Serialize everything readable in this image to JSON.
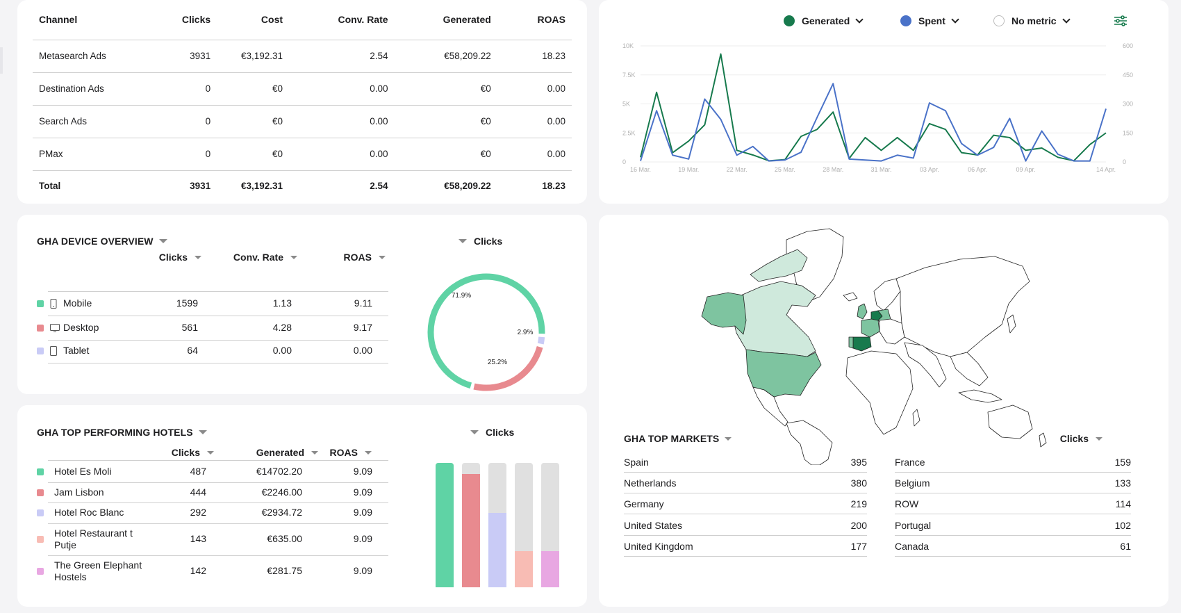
{
  "channel_table": {
    "headers": [
      "Channel",
      "Clicks",
      "Cost",
      "Conv. Rate",
      "Generated",
      "ROAS"
    ],
    "rows": [
      [
        "Metasearch Ads",
        "3931",
        "€3,192.31",
        "2.54",
        "€58,209.22",
        "18.23"
      ],
      [
        "Destination Ads",
        "0",
        "€0",
        "0.00",
        "€0",
        "0.00"
      ],
      [
        "Search Ads",
        "0",
        "€0",
        "0.00",
        "€0",
        "0.00"
      ],
      [
        "PMax",
        "0",
        "€0",
        "0.00",
        "€0",
        "0.00"
      ]
    ],
    "total": [
      "Total",
      "3931",
      "€3,192.31",
      "2.54",
      "€58,209.22",
      "18.23"
    ]
  },
  "line_chart": {
    "legend": {
      "generated": "Generated",
      "spent": "Spent",
      "no_metric": "No metric"
    },
    "settings_icon": "sliders-icon",
    "colors": {
      "generated": "#177a4d",
      "spent": "#4a72c8",
      "no_metric": "#ffffff"
    }
  },
  "chart_data": {
    "type": "line",
    "x": [
      "16 Mar.",
      "17 Mar.",
      "18 Mar.",
      "19 Mar.",
      "20 Mar.",
      "21 Mar.",
      "22 Mar.",
      "23 Mar.",
      "24 Mar.",
      "25 Mar.",
      "26 Mar.",
      "27 Mar.",
      "28 Mar.",
      "29 Mar.",
      "30 Mar.",
      "31 Mar.",
      "01 Apr.",
      "02 Apr.",
      "03 Apr.",
      "04 Apr.",
      "05 Apr.",
      "06 Apr.",
      "07 Apr.",
      "08 Apr.",
      "09 Apr.",
      "10 Apr.",
      "11 Apr.",
      "12 Apr.",
      "13 Apr.",
      "14 Apr."
    ],
    "x_tick_labels": [
      "16 Mar.",
      "19 Mar.",
      "22 Mar.",
      "25 Mar.",
      "28 Mar.",
      "31 Mar.",
      "03 Apr.",
      "06 Apr.",
      "09 Apr.",
      "14 Apr."
    ],
    "y_left_ticks": [
      "0",
      "2.5K",
      "5K",
      "7.5K",
      "10K"
    ],
    "y_right_ticks": [
      "0",
      "150",
      "300",
      "450",
      "600"
    ],
    "ylim_left": [
      0,
      10000
    ],
    "ylim_right": [
      0,
      600
    ],
    "series": [
      {
        "name": "Generated",
        "axis": "left",
        "color": "#177a4d",
        "values": [
          400,
          6000,
          800,
          1800,
          3200,
          9300,
          1000,
          600,
          100,
          200,
          2200,
          2800,
          4300,
          300,
          2100,
          1000,
          2100,
          1000,
          3300,
          2800,
          800,
          600,
          2300,
          2100,
          1000,
          1200,
          400,
          100,
          1500,
          2500
        ]
      },
      {
        "name": "Spent",
        "axis": "right",
        "color": "#4a72c8",
        "values": [
          5,
          265,
          35,
          15,
          325,
          220,
          35,
          80,
          5,
          10,
          50,
          230,
          405,
          15,
          10,
          5,
          35,
          20,
          305,
          265,
          95,
          35,
          75,
          225,
          5,
          160,
          40,
          5,
          5,
          275
        ]
      }
    ],
    "grid": "horizontal",
    "legend_position": "top-right"
  },
  "device_overview": {
    "title": "GHA DEVICE OVERVIEW",
    "metric_selector": "Clicks",
    "headers": [
      "Clicks",
      "Conv. Rate",
      "ROAS"
    ],
    "rows": [
      {
        "name": "Mobile",
        "icon": "mobile-phone-icon",
        "color": "#5fd3a5",
        "clicks": "1599",
        "conv": "1.13",
        "roas": "9.11"
      },
      {
        "name": "Desktop",
        "icon": "desktop-monitor-icon",
        "color": "#e88a8f",
        "clicks": "561",
        "conv": "4.28",
        "roas": "9.17"
      },
      {
        "name": "Tablet",
        "icon": "tablet-icon",
        "color": "#c9cbf6",
        "clicks": "64",
        "conv": "0.00",
        "roas": "0.00"
      }
    ],
    "donut": [
      {
        "label": "71.9%",
        "value": 71.9,
        "color": "#5fd3a5"
      },
      {
        "label": "25.2%",
        "value": 25.2,
        "color": "#e88a8f"
      },
      {
        "label": "2.9%",
        "value": 2.9,
        "color": "#c9cbf6"
      }
    ]
  },
  "top_hotels": {
    "title": "GHA TOP PERFORMING HOTELS",
    "metric_selector": "Clicks",
    "headers": [
      "Clicks",
      "Generated",
      "ROAS"
    ],
    "rows": [
      {
        "name": "Hotel Es Moli",
        "color": "#5fd3a5",
        "clicks": "487",
        "generated": "€14702.20",
        "roas": "9.09",
        "fill": 1.0
      },
      {
        "name": "Jam Lisbon",
        "color": "#e88a8f",
        "clicks": "444",
        "generated": "€2246.00",
        "roas": "9.09",
        "fill": 0.91
      },
      {
        "name": "Hotel Roc Blanc",
        "color": "#c9cbf6",
        "clicks": "292",
        "generated": "€2934.72",
        "roas": "9.09",
        "fill": 0.6
      },
      {
        "name": "Hotel Restaurant t Putje",
        "color": "#f8bcb4",
        "clicks": "143",
        "generated": "€635.00",
        "roas": "9.09",
        "fill": 0.29
      },
      {
        "name": "The Green Elephant Hostels",
        "color": "#e8a7e2",
        "clicks": "142",
        "generated": "€281.75",
        "roas": "9.09",
        "fill": 0.29
      }
    ],
    "bar_track_color": "#e0e0e0"
  },
  "top_markets": {
    "title": "GHA TOP MARKETS",
    "metric_selector": "Clicks",
    "left": [
      {
        "country": "Spain",
        "value": "395"
      },
      {
        "country": "Netherlands",
        "value": "380"
      },
      {
        "country": "Germany",
        "value": "219"
      },
      {
        "country": "United States",
        "value": "200"
      },
      {
        "country": "United Kingdom",
        "value": "177"
      }
    ],
    "right": [
      {
        "country": "France",
        "value": "159"
      },
      {
        "country": "Belgium",
        "value": "133"
      },
      {
        "country": "ROW",
        "value": "114"
      },
      {
        "country": "Portugal",
        "value": "102"
      },
      {
        "country": "Canada",
        "value": "61"
      }
    ],
    "map_colors": {
      "high": "#177a4d",
      "mid": "#7ec4a0",
      "low": "#cfe9dc",
      "none": "#ffffff"
    }
  }
}
